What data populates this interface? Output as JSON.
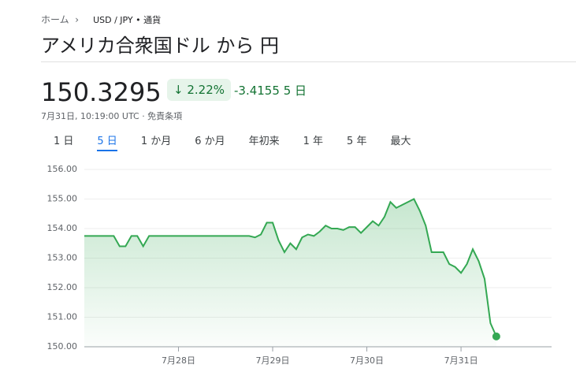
{
  "breadcrumb": {
    "home": "ホーム",
    "current": "USD / JPY • 通貨"
  },
  "title": "アメリカ合衆国ドル から 円",
  "price": "150.3295",
  "change_percent": "2.22%",
  "change_value": "-3.4155",
  "change_period": "5 日",
  "timestamp": "7月31日, 10:19:00 UTC · 免責条項",
  "tabs": [
    "1 日",
    "5 日",
    "1 か月",
    "6 か月",
    "年初来",
    "1 年",
    "5 年",
    "最大"
  ],
  "selected_tab": 1,
  "chart_data": {
    "type": "line",
    "categories": [
      null,
      null,
      null,
      null,
      null,
      null,
      null,
      null,
      null,
      null,
      null,
      null,
      null,
      null,
      null,
      null,
      "7月28日",
      null,
      null,
      null,
      null,
      null,
      null,
      null,
      null,
      null,
      null,
      null,
      null,
      null,
      null,
      null,
      "7月29日",
      null,
      null,
      null,
      null,
      null,
      null,
      null,
      null,
      null,
      null,
      null,
      null,
      null,
      null,
      null,
      "7月30日",
      null,
      null,
      null,
      null,
      null,
      null,
      null,
      null,
      null,
      null,
      null,
      null,
      null,
      null,
      null,
      "7月31日",
      null,
      null,
      null,
      null,
      null,
      null
    ],
    "series": [
      {
        "name": "USD / JPY",
        "color": "#34a853",
        "values": [
          153.75,
          153.75,
          153.75,
          153.75,
          153.75,
          153.75,
          153.4,
          153.4,
          153.75,
          153.75,
          153.4,
          153.75,
          153.75,
          153.75,
          153.75,
          153.75,
          153.75,
          153.75,
          153.75,
          153.75,
          153.75,
          153.75,
          153.75,
          153.75,
          153.75,
          153.75,
          153.75,
          153.75,
          153.75,
          153.7,
          153.8,
          154.2,
          154.2,
          153.6,
          153.2,
          153.5,
          153.3,
          153.7,
          153.8,
          153.75,
          153.9,
          154.1,
          154.0,
          154.0,
          153.95,
          154.05,
          154.05,
          153.85,
          154.05,
          154.25,
          154.1,
          154.4,
          154.9,
          154.7,
          154.8,
          154.9,
          155.0,
          154.6,
          154.1,
          153.2,
          153.2,
          153.2,
          152.8,
          152.7,
          152.5,
          152.8,
          153.3,
          152.9,
          152.3,
          150.8,
          150.35
        ]
      }
    ],
    "ylim": [
      150,
      156
    ],
    "yticks": [
      {
        "value": 150,
        "label": "150.00"
      },
      {
        "value": 151,
        "label": "151.00"
      },
      {
        "value": 152,
        "label": "152.00"
      },
      {
        "value": 153,
        "label": "153.00"
      },
      {
        "value": 154,
        "label": "154.00"
      },
      {
        "value": 155,
        "label": "155.00"
      },
      {
        "value": 156,
        "label": "156.00"
      }
    ],
    "grid": true
  }
}
